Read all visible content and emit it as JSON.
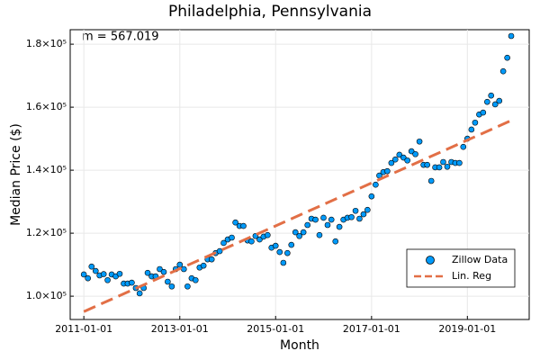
{
  "chart_data": {
    "type": "scatter",
    "title": "Philadelphia, Pennsylvania",
    "xlabel": "Month",
    "ylabel": "Median Price ($)",
    "annotation": "m = 567.019",
    "xlim": [
      "2010-09-19",
      "2020-04-16"
    ],
    "xticks": [
      "2011-01-01",
      "2013-01-01",
      "2015-01-01",
      "2017-01-01",
      "2019-01-01"
    ],
    "ylim": [
      92600,
      184600
    ],
    "yticks": [
      {
        "value": 100000,
        "label": "1.0×10⁵"
      },
      {
        "value": 120000,
        "label": "1.2×10⁵"
      },
      {
        "value": 140000,
        "label": "1.4×10⁵"
      },
      {
        "value": 160000,
        "label": "1.6×10⁵"
      },
      {
        "value": 180000,
        "label": "1.8×10⁵"
      }
    ],
    "grid": true,
    "legend": "bottom-right",
    "series": [
      {
        "name": "Zillow Data",
        "type": "scatter",
        "color": "#009afa",
        "x": [
          "2011-01-01",
          "2011-02-01",
          "2011-03-01",
          "2011-04-01",
          "2011-05-01",
          "2011-06-01",
          "2011-07-01",
          "2011-08-01",
          "2011-09-01",
          "2011-10-01",
          "2011-11-01",
          "2011-12-01",
          "2012-01-01",
          "2012-02-01",
          "2012-03-01",
          "2012-04-01",
          "2012-05-01",
          "2012-06-01",
          "2012-07-01",
          "2012-08-01",
          "2012-09-01",
          "2012-10-01",
          "2012-11-01",
          "2012-12-01",
          "2013-01-01",
          "2013-02-01",
          "2013-03-01",
          "2013-04-01",
          "2013-05-01",
          "2013-06-01",
          "2013-07-01",
          "2013-08-01",
          "2013-09-01",
          "2013-10-01",
          "2013-11-01",
          "2013-12-01",
          "2014-01-01",
          "2014-02-01",
          "2014-03-01",
          "2014-04-01",
          "2014-05-01",
          "2014-06-01",
          "2014-07-01",
          "2014-08-01",
          "2014-09-01",
          "2014-10-01",
          "2014-11-01",
          "2014-12-01",
          "2015-01-01",
          "2015-02-01",
          "2015-03-01",
          "2015-04-01",
          "2015-05-01",
          "2015-06-01",
          "2015-07-01",
          "2015-08-01",
          "2015-09-01",
          "2015-10-01",
          "2015-11-01",
          "2015-12-01",
          "2016-01-01",
          "2016-02-01",
          "2016-03-01",
          "2016-04-01",
          "2016-05-01",
          "2016-06-01",
          "2016-07-01",
          "2016-08-01",
          "2016-09-01",
          "2016-10-01",
          "2016-11-01",
          "2016-12-01",
          "2017-01-01",
          "2017-02-01",
          "2017-03-01",
          "2017-04-01",
          "2017-05-01",
          "2017-06-01",
          "2017-07-01",
          "2017-08-01",
          "2017-09-01",
          "2017-10-01",
          "2017-11-01",
          "2017-12-01",
          "2018-01-01",
          "2018-02-01",
          "2018-03-01",
          "2018-04-01",
          "2018-05-01",
          "2018-06-01",
          "2018-07-01",
          "2018-08-01",
          "2018-09-01",
          "2018-10-01",
          "2018-11-01",
          "2018-12-01",
          "2019-01-01",
          "2019-02-01",
          "2019-03-01",
          "2019-04-01",
          "2019-05-01",
          "2019-06-01",
          "2019-07-01",
          "2019-08-01",
          "2019-09-01",
          "2019-10-01",
          "2019-11-01",
          "2019-12-01"
        ],
        "values": [
          106900,
          105700,
          109400,
          108000,
          106600,
          107000,
          105100,
          106900,
          106300,
          107100,
          104000,
          104000,
          104300,
          102600,
          100900,
          102600,
          107400,
          106300,
          106300,
          108600,
          107700,
          104600,
          103100,
          108600,
          110000,
          108600,
          103100,
          105700,
          105100,
          109100,
          109700,
          111700,
          111700,
          113700,
          114300,
          116900,
          118000,
          118600,
          123400,
          122300,
          122300,
          117700,
          117400,
          119100,
          118000,
          118900,
          119400,
          115400,
          116000,
          114000,
          110600,
          113700,
          116300,
          120300,
          119100,
          120300,
          122600,
          124600,
          124300,
          119400,
          124900,
          122600,
          124300,
          117400,
          122000,
          124300,
          124900,
          125100,
          127100,
          124600,
          126000,
          127400,
          131700,
          135400,
          138300,
          139400,
          139700,
          142300,
          143400,
          144900,
          144000,
          143100,
          146000,
          145100,
          149100,
          141700,
          141700,
          136600,
          140900,
          140900,
          142600,
          141100,
          142600,
          142300,
          142300,
          147400,
          150000,
          152900,
          155100,
          157700,
          158300,
          161700,
          163700,
          160900,
          162000,
          171400,
          175700,
          182600
        ]
      },
      {
        "name": "Lin. Reg",
        "type": "line",
        "color": "#e26f46",
        "dash": true,
        "x": [
          "2011-01-01",
          "2019-12-01"
        ],
        "values": [
          95100,
          155770
        ]
      }
    ]
  }
}
